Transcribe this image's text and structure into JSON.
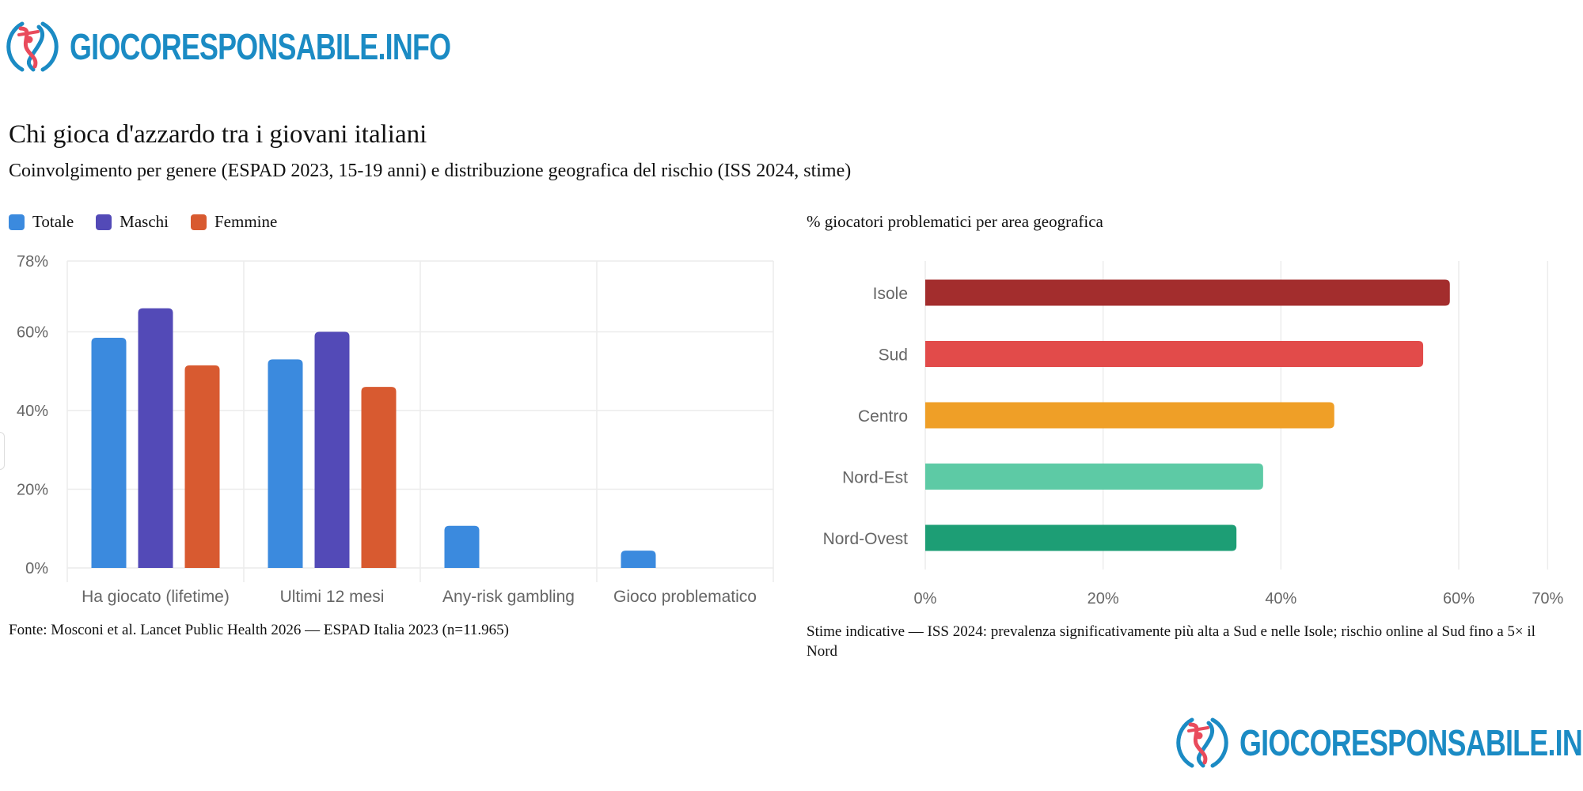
{
  "brand": {
    "name": "GIOCORESPONSABILE.INFO",
    "colors": {
      "primary": "#1b8bc4",
      "accent": "#e94b5c"
    }
  },
  "header": {
    "title": "Chi gioca d'azzardo tra i giovani italiani",
    "subtitle": "Coinvolgimento per genere (ESPAD 2023, 15-19 anni) e distribuzione geografica del rischio (ISS 2024, stime)"
  },
  "chart_data": [
    {
      "type": "bar",
      "title": "",
      "categories": [
        "Ha giocato (lifetime)",
        "Ultimi 12 mesi",
        "Any-risk gambling",
        "Gioco problematico"
      ],
      "series": [
        {
          "name": "Totale",
          "color": "#3b8ade",
          "values": [
            58.5,
            53,
            10.7,
            4.4
          ]
        },
        {
          "name": "Maschi",
          "color": "#534ab7",
          "values": [
            66,
            60,
            null,
            null
          ]
        },
        {
          "name": "Femmine",
          "color": "#d85a30",
          "values": [
            51.5,
            46,
            null,
            null
          ]
        }
      ],
      "ylim": [
        0,
        78
      ],
      "yticks": [
        "0%",
        "20%",
        "40%",
        "60%",
        "78%"
      ],
      "ytick_values": [
        0,
        20,
        40,
        60,
        78
      ],
      "xlabel": "",
      "ylabel": "",
      "grid": true,
      "legend": "top-left",
      "note": "Fonte: Mosconi et al. Lancet Public Health 2026 — ESPAD Italia 2023 (n=11.965)"
    },
    {
      "type": "bar",
      "orientation": "horizontal",
      "title": "% giocatori problematici per area geografica",
      "categories": [
        "Isole",
        "Sud",
        "Centro",
        "Nord-Est",
        "Nord-Ovest"
      ],
      "values": [
        59,
        56,
        46,
        38,
        35
      ],
      "colors": [
        "#a32d2d",
        "#e24b4a",
        "#ef9f27",
        "#5dcaa5",
        "#1d9e75"
      ],
      "xlim": [
        0,
        70
      ],
      "xticks": [
        "0%",
        "20%",
        "40%",
        "60%",
        "70%"
      ],
      "xtick_values": [
        0,
        20,
        40,
        60,
        70
      ],
      "xlabel": "",
      "ylabel": "",
      "grid": true,
      "note": "Stime indicative — ISS 2024: prevalenza significativamente più alta a Sud e nelle Isole; rischio online al Sud fino a 5× il Nord"
    }
  ]
}
